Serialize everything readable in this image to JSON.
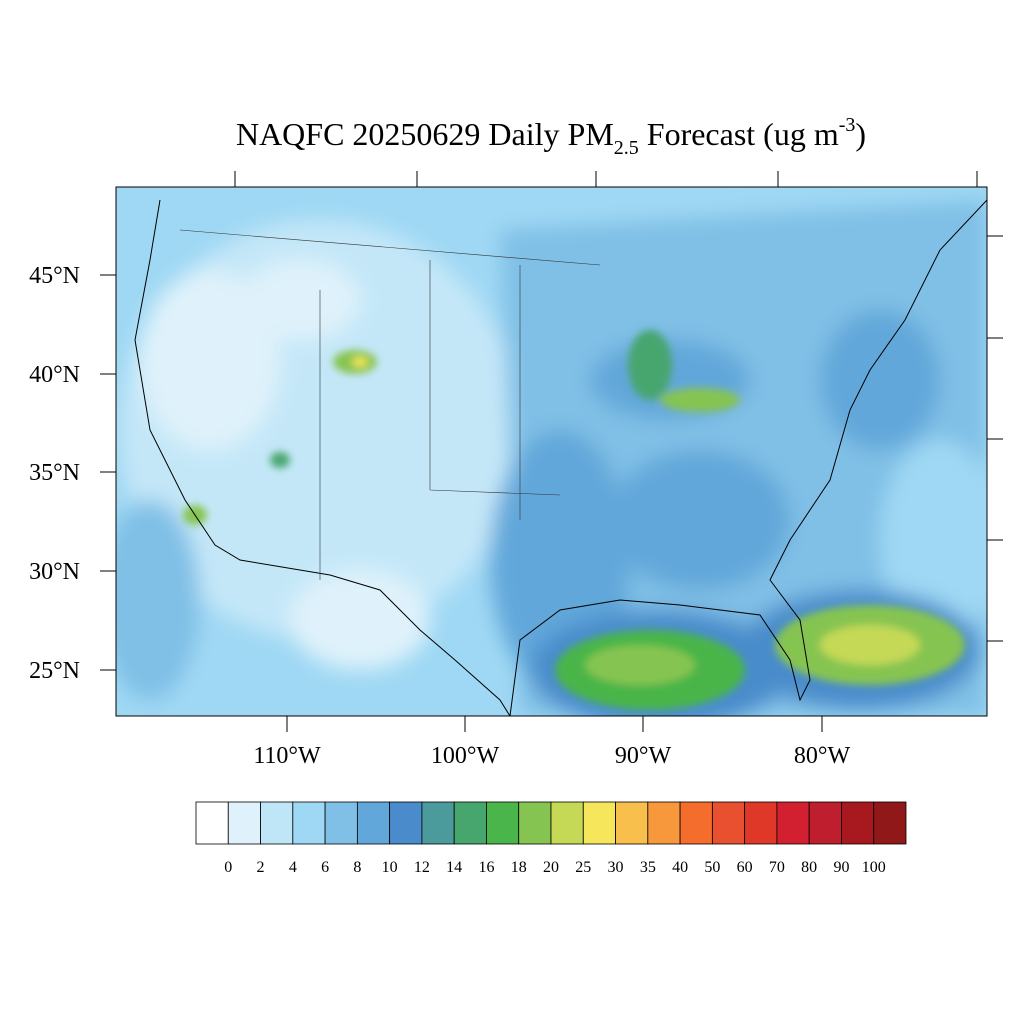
{
  "title": {
    "main": "NAQFC 20250629 Daily PM",
    "sub": "2.5",
    "mid": " Forecast (ug m",
    "sup": "-3",
    "end": ")"
  },
  "map": {
    "lat_labels": [
      "45°N",
      "40°N",
      "35°N",
      "30°N",
      "25°N"
    ],
    "lon_labels": [
      "110°W",
      "100°W",
      "90°W",
      "80°W"
    ]
  },
  "colorbar": {
    "levels": [
      0,
      2,
      4,
      6,
      8,
      10,
      12,
      14,
      16,
      18,
      20,
      25,
      30,
      35,
      40,
      50,
      60,
      70,
      80,
      90,
      100
    ],
    "colors": [
      "#ffffff",
      "#dff2fb",
      "#bfe6f7",
      "#9fd8f4",
      "#80c0e6",
      "#62a7da",
      "#4a8ccb",
      "#4b9a9c",
      "#47a66e",
      "#4ab54a",
      "#86c451",
      "#c5d956",
      "#f5e65c",
      "#f9bf4c",
      "#f8983d",
      "#f46d2c",
      "#e85030",
      "#df3828",
      "#d32030",
      "#be1e2d",
      "#a8191f",
      "#901818"
    ]
  }
}
